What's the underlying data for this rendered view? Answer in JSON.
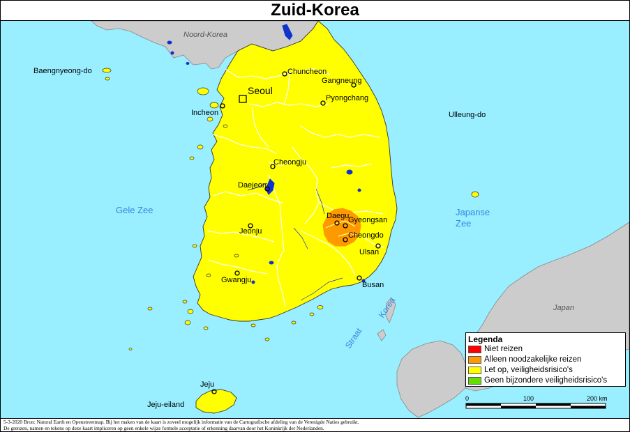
{
  "title": "Zuid-Korea",
  "labels": {
    "north_korea": "Noord-Korea",
    "baengnyeong": "Baengnyeong-do",
    "seoul": "Seoul",
    "incheon": "Incheon",
    "chuncheon": "Chuncheon",
    "gangneung": "Gangneung",
    "pyongchang": "Pyongchang",
    "ulleung": "Ulleung-do",
    "cheongju": "Cheongju",
    "daejeon": "Daejeon",
    "gele_zee": "Gele Zee",
    "japanse_zee_1": "Japanse",
    "japanse_zee_2": "Zee",
    "daegu": "Daegu",
    "gyeongsan": "Gyeongsan",
    "cheongdo": "Cheongdo",
    "ulsan": "Ulsan",
    "jeonju": "Jeonju",
    "gwangju": "Gwangju",
    "busan": "Busan",
    "japan": "Japan",
    "straat": "Straat",
    "korea_strait": "Korea",
    "jeju": "Jeju",
    "jeju_island": "Jeju-eiland"
  },
  "legend": {
    "title": "Legenda",
    "items": [
      {
        "label": "Niet reizen",
        "color": "#ff0000"
      },
      {
        "label": "Alleen noodzakelijke reizen",
        "color": "#ff9900"
      },
      {
        "label": "Let op, veiligheidsrisico's",
        "color": "#ffff00"
      },
      {
        "label": "Geen bijzondere veiligheidsrisico's",
        "color": "#66dd00"
      }
    ]
  },
  "scale": {
    "ticks": [
      "0",
      "100",
      "200 km"
    ]
  },
  "colors": {
    "sea": "#99eeff",
    "land_foreign": "#cccccc",
    "land_korea": "#ffff00",
    "risk_zone": "#ff9900",
    "water": "#1133cc",
    "sea_label": "#3388dd"
  },
  "footer": {
    "line1": "5-3-2020 Bron: Natural Earth en Openstreetmap. Bij het maken van de kaart is zoveel mogelijk informatie van de Cartografische afdeling van de Verenigde Naties gebruikt.",
    "line2": "De grenzen, namen en tekens op deze kaart impliceren op geen enkele wijze formele acceptatie of erkenning daarvan door het Koninkrijk der Nederlanden."
  }
}
